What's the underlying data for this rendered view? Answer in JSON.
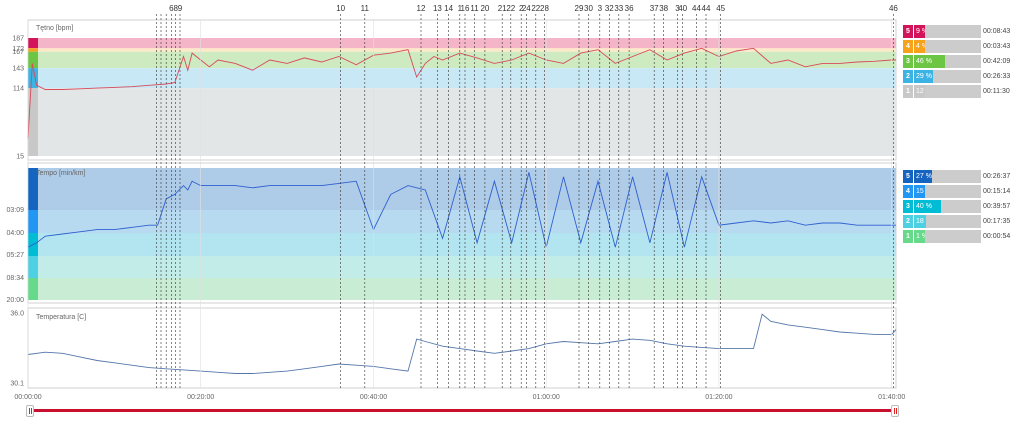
{
  "chart_data": [
    {
      "type": "line",
      "ylabel": "Tętno [bpm]",
      "yticks": [
        187,
        172,
        167,
        143,
        114,
        15
      ],
      "ylim": [
        15,
        195
      ],
      "series": [
        {
          "x": [
            0,
            0.5,
            1,
            2,
            4,
            6,
            8,
            10,
            12,
            14,
            16,
            17,
            18,
            18.5,
            19,
            20,
            21,
            22,
            24,
            26,
            28,
            30,
            32,
            34,
            36,
            38,
            40,
            42,
            44,
            45,
            46,
            47,
            48,
            50,
            52,
            54,
            56,
            58,
            60,
            62,
            64,
            66,
            68,
            70,
            72,
            74,
            76,
            78,
            80,
            82,
            84,
            86,
            88,
            90,
            92,
            94,
            96,
            98,
            100,
            100.5
          ],
          "y": [
            40,
            150,
            118,
            112,
            112,
            113,
            114,
            115,
            116,
            118,
            120,
            122,
            160,
            140,
            165,
            155,
            145,
            155,
            150,
            140,
            155,
            150,
            158,
            152,
            160,
            148,
            162,
            165,
            170,
            130,
            150,
            160,
            155,
            165,
            158,
            150,
            155,
            165,
            155,
            150,
            165,
            170,
            150,
            160,
            170,
            155,
            165,
            172,
            160,
            168,
            172,
            150,
            155,
            145,
            150,
            150,
            152,
            153,
            155,
            155
          ]
        }
      ],
      "zones": [
        {
          "n": "5",
          "pct": "9 %",
          "time": "00:08:43",
          "color": "#d4145a",
          "band_color": "#f4b5c8",
          "band": [
            172,
            187
          ]
        },
        {
          "n": "4",
          "pct": "4 %",
          "time": "00:03:43",
          "color": "#f7a21b",
          "band_color": "#fde8c8",
          "band": [
            167,
            172
          ]
        },
        {
          "n": "3",
          "pct": "46 %",
          "time": "00:42:09",
          "color": "#6cc644",
          "band_color": "#cdeac0",
          "band": [
            143,
            167
          ]
        },
        {
          "n": "2",
          "pct": "29 %",
          "time": "00:26:33",
          "color": "#3bb3e4",
          "band_color": "#c8e8f5",
          "band": [
            114,
            143
          ]
        },
        {
          "n": "1",
          "pct": "12 %",
          "time": "00:11:30",
          "color": "#c8c8c8",
          "band_color": "#e2e6e6",
          "band": [
            15,
            114
          ]
        }
      ]
    },
    {
      "type": "line",
      "ylabel": "Tempo [min/km]",
      "yticks": [
        "03:09",
        "04:00",
        "05:27",
        "08:34",
        "20:00"
      ],
      "series": [
        {
          "x": [
            0,
            1,
            2,
            4,
            6,
            8,
            10,
            12,
            14,
            15,
            16,
            17,
            18,
            18.5,
            19,
            20,
            22,
            24,
            26,
            28,
            30,
            32,
            34,
            36,
            38,
            40,
            42,
            44,
            46,
            48,
            50,
            52,
            54,
            56,
            58,
            60,
            62,
            64,
            66,
            68,
            70,
            72,
            74,
            76,
            78,
            80,
            82,
            84,
            86,
            88,
            90,
            92,
            94,
            96,
            98,
            100,
            100.5
          ],
          "y": [
            1.2,
            1.3,
            1.45,
            1.5,
            1.55,
            1.6,
            1.6,
            1.65,
            1.7,
            1.7,
            2.3,
            2.4,
            2.6,
            2.5,
            2.7,
            2.6,
            2.6,
            2.6,
            2.55,
            2.6,
            2.6,
            2.6,
            2.6,
            2.65,
            2.7,
            1.6,
            2.4,
            2.6,
            2.5,
            1.4,
            2.8,
            1.3,
            2.7,
            1.3,
            2.9,
            1.2,
            2.8,
            1.3,
            2.7,
            1.2,
            2.8,
            1.3,
            2.9,
            1.2,
            2.8,
            1.7,
            1.75,
            1.8,
            1.75,
            1.8,
            1.7,
            1.75,
            1.75,
            1.7,
            1.7,
            1.7,
            1.7
          ]
        }
      ],
      "zones": [
        {
          "n": "5",
          "pct": "27 %",
          "time": "00:26:37",
          "color": "#1565c0",
          "band_color": "#aecbe8"
        },
        {
          "n": "4",
          "pct": "15 %",
          "time": "00:15:14",
          "color": "#2196f3",
          "band_color": "#b8daf0"
        },
        {
          "n": "3",
          "pct": "40 %",
          "time": "00:39:57",
          "color": "#00bcd4",
          "band_color": "#b3e5f0"
        },
        {
          "n": "2",
          "pct": "18 %",
          "time": "00:17:35",
          "color": "#4dd0e1",
          "band_color": "#c2ece8"
        },
        {
          "n": "1",
          "pct": "1 %",
          "time": "00:00:54",
          "color": "#66d98a",
          "band_color": "#c9ecd4"
        }
      ]
    },
    {
      "type": "line",
      "ylabel": "Temperatura [C]",
      "yticks": [
        "36.0",
        "30.1"
      ],
      "ylim": [
        30.1,
        36.0
      ],
      "series": [
        {
          "x": [
            0,
            2,
            4,
            6,
            8,
            10,
            12,
            14,
            16,
            18,
            20,
            22,
            24,
            26,
            28,
            30,
            32,
            34,
            36,
            38,
            40,
            42,
            44,
            45,
            46,
            48,
            50,
            52,
            54,
            56,
            58,
            60,
            62,
            64,
            66,
            68,
            70,
            72,
            74,
            76,
            78,
            80,
            82,
            84,
            85,
            86,
            88,
            90,
            92,
            94,
            96,
            98,
            100,
            100.5
          ],
          "y": [
            32.5,
            32.7,
            32.6,
            32.3,
            32.0,
            31.8,
            31.6,
            31.4,
            31.3,
            31.2,
            31.1,
            31.0,
            30.9,
            30.9,
            31.0,
            31.1,
            31.3,
            31.5,
            31.7,
            31.6,
            31.5,
            31.3,
            31.1,
            33.8,
            33.6,
            33.2,
            33.0,
            32.8,
            32.6,
            32.8,
            33.0,
            33.4,
            33.6,
            33.5,
            33.4,
            33.6,
            33.8,
            33.7,
            33.4,
            33.2,
            33.1,
            33.0,
            33.0,
            33.0,
            35.9,
            35.3,
            35.0,
            34.8,
            34.6,
            34.4,
            34.3,
            34.2,
            34.2,
            34.6
          ]
        }
      ]
    }
  ],
  "x_axis": {
    "ticks": [
      {
        "label": "00:00:00",
        "min": 0
      },
      {
        "label": "00:20:00",
        "min": 20
      },
      {
        "label": "00:40:00",
        "min": 40
      },
      {
        "label": "01:00:00",
        "min": 60
      },
      {
        "label": "01:20:00",
        "min": 80
      },
      {
        "label": "01:40:00",
        "min": 100
      }
    ],
    "max_minutes": 100.5
  },
  "laps": [
    {
      "label": "",
      "min": 14.9
    },
    {
      "label": "",
      "min": 15.4
    },
    {
      "label": "",
      "min": 16.0
    },
    {
      "label": "6",
      "min": 16.6
    },
    {
      "label": "8",
      "min": 17.1
    },
    {
      "label": "9",
      "min": 17.6
    },
    {
      "label": "10",
      "min": 36.2
    },
    {
      "label": "11",
      "min": 39.0
    },
    {
      "label": "12",
      "min": 45.5
    },
    {
      "label": "13",
      "min": 47.4
    },
    {
      "label": "14",
      "min": 48.7
    },
    {
      "label": "1",
      "min": 50.0
    },
    {
      "label": "16",
      "min": 50.6
    },
    {
      "label": "11",
      "min": 51.7
    },
    {
      "label": "20",
      "min": 52.9
    },
    {
      "label": "21",
      "min": 54.9
    },
    {
      "label": "22",
      "min": 55.9
    },
    {
      "label": "2",
      "min": 57.1
    },
    {
      "label": "24",
      "min": 57.7
    },
    {
      "label": "22",
      "min": 58.8
    },
    {
      "label": "28",
      "min": 59.8
    },
    {
      "label": "29",
      "min": 63.8
    },
    {
      "label": "30",
      "min": 64.9
    },
    {
      "label": "3",
      "min": 66.2
    },
    {
      "label": "32",
      "min": 67.3
    },
    {
      "label": "33",
      "min": 68.4
    },
    {
      "label": "36",
      "min": 69.6
    },
    {
      "label": "37",
      "min": 72.5
    },
    {
      "label": "38",
      "min": 73.6
    },
    {
      "label": "3",
      "min": 75.2
    },
    {
      "label": "40",
      "min": 75.8
    },
    {
      "label": "44",
      "min": 77.4
    },
    {
      "label": "44",
      "min": 78.5
    },
    {
      "label": "45",
      "min": 80.2
    },
    {
      "label": "46",
      "min": 100.2
    }
  ]
}
